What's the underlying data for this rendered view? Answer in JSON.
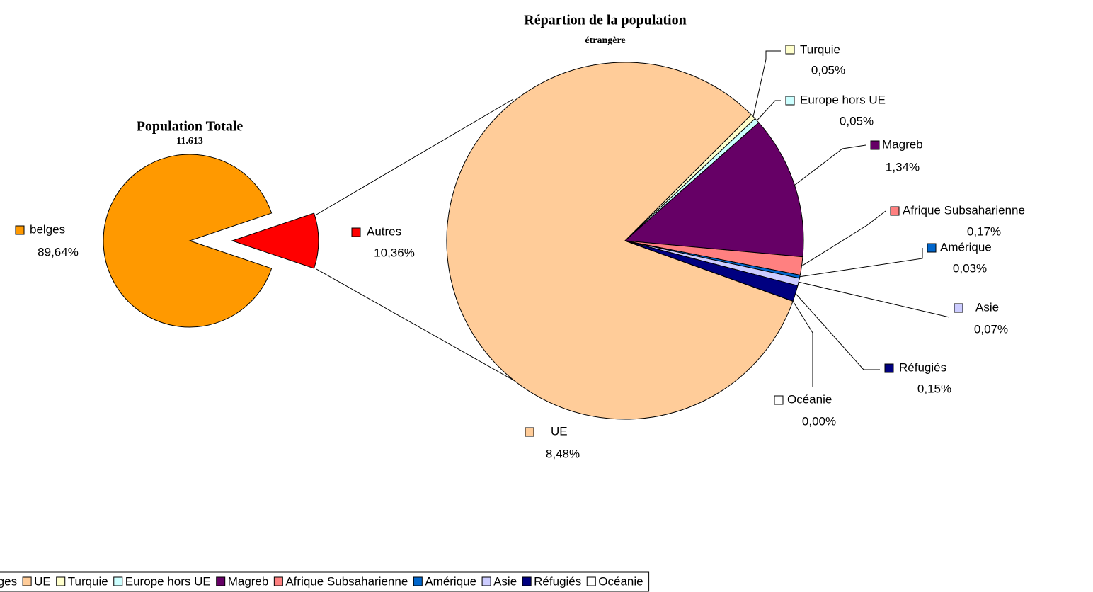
{
  "chart_data": [
    {
      "type": "pie",
      "title": "Population Totale",
      "subtitle": "11.613",
      "categories": [
        "belges",
        "Autres"
      ],
      "values": [
        89.64,
        10.36
      ],
      "value_labels": [
        "89,64%",
        "10,36%"
      ],
      "colors": [
        "#ff9900",
        "#ff0000"
      ]
    },
    {
      "type": "pie",
      "title": "Répartion de la population",
      "subtitle": "étrangère",
      "categories": [
        "UE",
        "Turquie",
        "Europe hors UE",
        "Magreb",
        "Afrique Subsaharienne",
        "Amérique",
        "Asie",
        "Réfugiés",
        "Océanie"
      ],
      "values": [
        8.48,
        0.05,
        0.05,
        1.34,
        0.17,
        0.03,
        0.07,
        0.15,
        0.0
      ],
      "value_labels": [
        "8,48%",
        "0,05%",
        "0,05%",
        "1,34%",
        "0,17%",
        "0,03%",
        "0,07%",
        "0,15%",
        "0,00%"
      ],
      "colors": [
        "#ffcc99",
        "#ffffcc",
        "#ccffff",
        "#660066",
        "#ff8080",
        "#0066cc",
        "#ccccff",
        "#000080",
        "#ffffff"
      ]
    }
  ]
}
